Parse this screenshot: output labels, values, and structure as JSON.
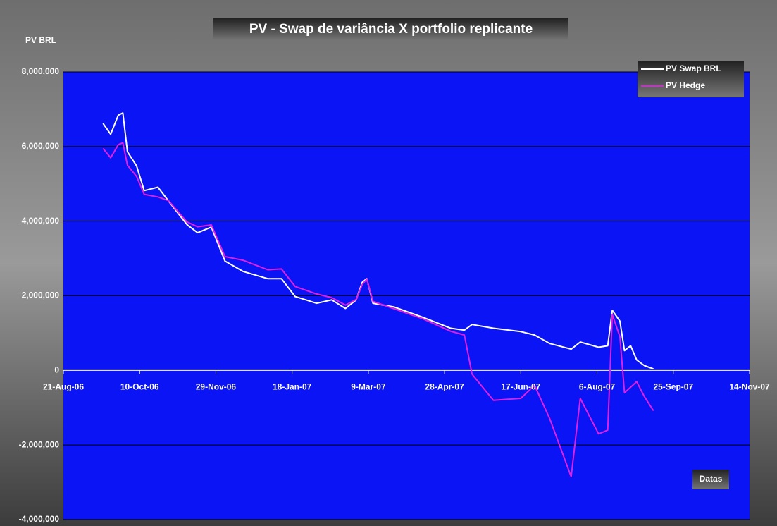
{
  "chart_data": {
    "type": "line",
    "title": "PV - Swap de variância X portfolio replicante",
    "y_label": "PV BRL",
    "x_label": "Datas",
    "x": [
      "2006-09-16",
      "2006-09-21",
      "2006-09-26",
      "2006-09-29",
      "2006-10-02",
      "2006-10-08",
      "2006-10-13",
      "2006-10-22",
      "2006-10-29",
      "2006-11-10",
      "2006-11-17",
      "2006-11-26",
      "2006-12-05",
      "2006-12-17",
      "2007-01-02",
      "2007-01-11",
      "2007-01-20",
      "2007-02-03",
      "2007-02-13",
      "2007-02-22",
      "2007-03-01",
      "2007-03-05",
      "2007-03-08",
      "2007-03-12",
      "2007-03-26",
      "2007-04-14",
      "2007-05-02",
      "2007-05-11",
      "2007-05-16",
      "2007-05-30",
      "2007-06-17",
      "2007-06-26",
      "2007-07-06",
      "2007-07-20",
      "2007-07-26",
      "2007-08-07",
      "2007-08-13",
      "2007-08-16",
      "2007-08-21",
      "2007-08-24",
      "2007-08-28",
      "2007-09-01",
      "2007-09-06",
      "2007-09-12"
    ],
    "series": [
      {
        "name": "PV Swap BRL",
        "color": "#ffffff",
        "values": [
          6620000,
          6330000,
          6840000,
          6900000,
          5860000,
          5480000,
          4820000,
          4910000,
          4540000,
          3910000,
          3690000,
          3840000,
          2930000,
          2650000,
          2460000,
          2460000,
          1980000,
          1800000,
          1890000,
          1660000,
          1890000,
          2360000,
          2460000,
          1800000,
          1700000,
          1420000,
          1130000,
          1080000,
          1230000,
          1130000,
          1040000,
          950000,
          720000,
          570000,
          760000,
          620000,
          660000,
          1610000,
          1320000,
          530000,
          660000,
          280000,
          130000,
          40000
        ]
      },
      {
        "name": "PV Hedge",
        "color": "#e020e0",
        "values": [
          5950000,
          5700000,
          6050000,
          6100000,
          5500000,
          5200000,
          4720000,
          4650000,
          4550000,
          3980000,
          3850000,
          3900000,
          3050000,
          2950000,
          2700000,
          2720000,
          2250000,
          2050000,
          1950000,
          1750000,
          1900000,
          2300000,
          2450000,
          1850000,
          1650000,
          1380000,
          1050000,
          950000,
          -100000,
          -800000,
          -750000,
          -400000,
          -1300000,
          -2850000,
          -750000,
          -1700000,
          -1600000,
          1500000,
          900000,
          -600000,
          -450000,
          -300000,
          -700000,
          -1080000
        ]
      }
    ],
    "xlim": [
      "2006-08-21",
      "2007-11-14"
    ],
    "xticks": [
      {
        "value": "2006-08-21",
        "label": "21-Aug-06"
      },
      {
        "value": "2006-10-10",
        "label": "10-Oct-06"
      },
      {
        "value": "2006-11-29",
        "label": "29-Nov-06"
      },
      {
        "value": "2007-01-18",
        "label": "18-Jan-07"
      },
      {
        "value": "2007-03-09",
        "label": "9-Mar-07"
      },
      {
        "value": "2007-04-28",
        "label": "28-Apr-07"
      },
      {
        "value": "2007-06-17",
        "label": "17-Jun-07"
      },
      {
        "value": "2007-08-06",
        "label": "6-Aug-07"
      },
      {
        "value": "2007-09-25",
        "label": "25-Sep-07"
      },
      {
        "value": "2007-11-14",
        "label": "14-Nov-07"
      }
    ],
    "ylim": [
      -4000000,
      8000000
    ],
    "yticks": [
      {
        "value": -4000000,
        "label": "-4,000,000"
      },
      {
        "value": -2000000,
        "label": "-2,000,000"
      },
      0,
      {
        "value": 2000000,
        "label": "2,000,000"
      },
      {
        "value": 4000000,
        "label": "4,000,000"
      },
      {
        "value": 6000000,
        "label": "6,000,000"
      },
      {
        "value": 8000000,
        "label": "8,000,000"
      }
    ],
    "grid": true,
    "legend": "upper right",
    "plot_color": "#0a14f5"
  }
}
